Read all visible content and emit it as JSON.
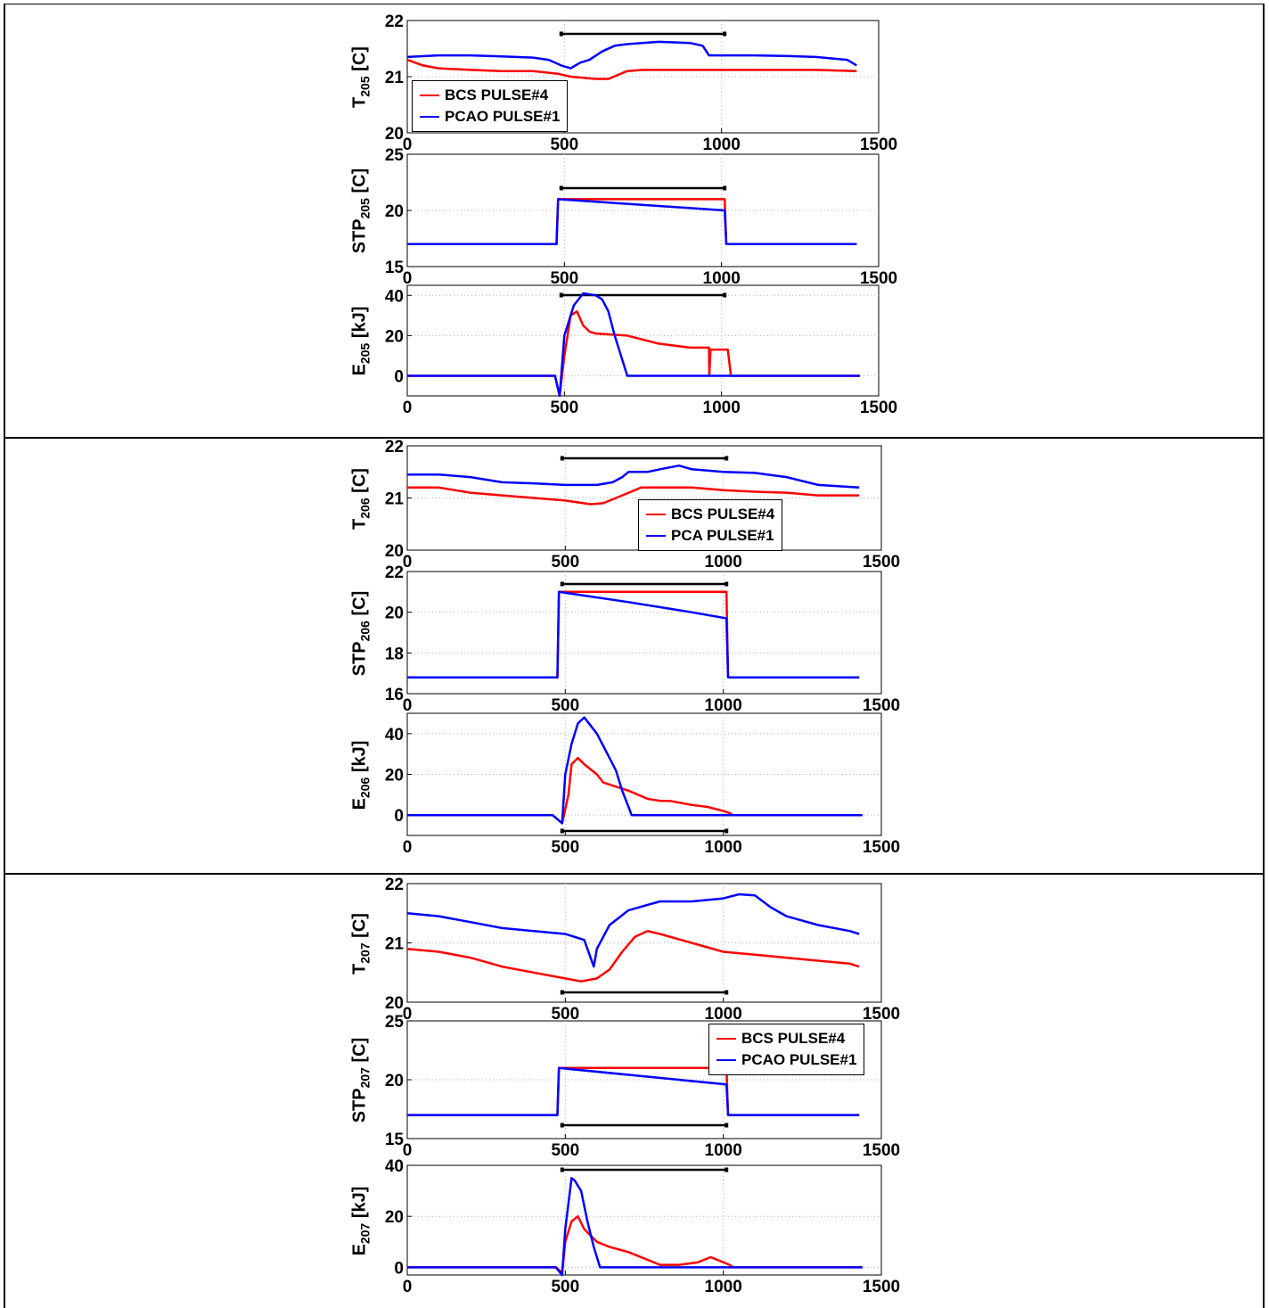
{
  "colors": {
    "bcs": "#ff0000",
    "pca": "#0000ff",
    "bar": "#000000",
    "grid": "#b0b0b0"
  },
  "chart_data": [
    {
      "type": "line",
      "ylabel_main": "T",
      "ylabel_sub": "205",
      "ylabel_unit": " [C]",
      "xlim": [
        0,
        1500
      ],
      "ylim": [
        20,
        22
      ],
      "yticks": [
        "20",
        "21",
        "22"
      ],
      "xticks": [
        "0",
        "500",
        "1000",
        "1500"
      ],
      "bar": [
        490,
        1010
      ],
      "legend": {
        "show": true,
        "items": [
          "BCS PULSE#4",
          "PCAO PULSE#1"
        ]
      },
      "series": [
        {
          "name": "BCS PULSE#4",
          "color": "bcs",
          "x": [
            0,
            50,
            100,
            200,
            300,
            400,
            480,
            520,
            600,
            640,
            700,
            750,
            800,
            900,
            1000,
            1100,
            1200,
            1300,
            1430
          ],
          "y": [
            21.3,
            21.2,
            21.15,
            21.12,
            21.1,
            21.1,
            21.05,
            21.0,
            20.96,
            20.96,
            21.1,
            21.12,
            21.12,
            21.12,
            21.12,
            21.12,
            21.12,
            21.12,
            21.1
          ]
        },
        {
          "name": "PCAO PULSE#1",
          "color": "pca",
          "x": [
            0,
            100,
            200,
            300,
            400,
            450,
            490,
            520,
            550,
            580,
            620,
            660,
            700,
            800,
            900,
            940,
            960,
            1000,
            1100,
            1200,
            1300,
            1400,
            1430
          ],
          "y": [
            21.35,
            21.38,
            21.38,
            21.36,
            21.34,
            21.3,
            21.2,
            21.15,
            21.25,
            21.3,
            21.45,
            21.55,
            21.58,
            21.62,
            21.6,
            21.55,
            21.38,
            21.38,
            21.38,
            21.37,
            21.35,
            21.3,
            21.2
          ]
        }
      ]
    },
    {
      "type": "line",
      "ylabel_main": "STP",
      "ylabel_sub": "205",
      "ylabel_unit": " [C]",
      "xlim": [
        0,
        1500
      ],
      "ylim": [
        15,
        25
      ],
      "yticks": [
        "15",
        "20",
        "25"
      ],
      "xticks": [
        "0",
        "500",
        "1000",
        "1500"
      ],
      "bar": [
        490,
        1010
      ],
      "legend": {
        "show": false,
        "items": []
      },
      "series": [
        {
          "name": "BCS PULSE#4",
          "color": "bcs",
          "x": [
            0,
            475,
            480,
            1010,
            1015,
            1430
          ],
          "y": [
            17,
            17,
            21,
            21,
            17,
            17
          ]
        },
        {
          "name": "PCAO PULSE#1",
          "color": "pca",
          "x": [
            0,
            475,
            480,
            1010,
            1015,
            1430
          ],
          "y": [
            17,
            17,
            21,
            20,
            17,
            17
          ]
        }
      ]
    },
    {
      "type": "line",
      "ylabel_main": "E",
      "ylabel_sub": "205",
      "ylabel_unit": " [kJ]",
      "xlim": [
        0,
        1500
      ],
      "ylim": [
        -10,
        45
      ],
      "yticks": [
        "0",
        "20",
        "40"
      ],
      "xticks": [
        "0",
        "500",
        "1000",
        "1500"
      ],
      "bar": [
        490,
        1010
      ],
      "legend": {
        "show": false,
        "items": []
      },
      "series": [
        {
          "name": "BCS PULSE#4",
          "color": "bcs",
          "x": [
            0,
            470,
            485,
            500,
            520,
            540,
            560,
            580,
            600,
            700,
            800,
            900,
            960,
            961,
            965,
            1000,
            1020,
            1030,
            1440
          ],
          "y": [
            0,
            0,
            -10,
            10,
            30,
            32,
            25,
            22,
            21,
            20,
            16,
            14,
            14,
            0,
            13,
            13,
            13,
            0,
            0
          ]
        },
        {
          "name": "PCAO PULSE#1",
          "color": "pca",
          "x": [
            0,
            470,
            485,
            500,
            530,
            560,
            600,
            620,
            640,
            660,
            700,
            1440
          ],
          "y": [
            0,
            0,
            -10,
            20,
            35,
            41,
            40,
            38,
            32,
            20,
            0,
            0
          ]
        }
      ]
    },
    {
      "type": "line",
      "ylabel_main": "T",
      "ylabel_sub": "206",
      "ylabel_unit": " [C]",
      "xlim": [
        0,
        1500
      ],
      "ylim": [
        20,
        22
      ],
      "yticks": [
        "20",
        "21",
        "22"
      ],
      "xticks": [
        "0",
        "500",
        "1000",
        "1500"
      ],
      "bar": [
        490,
        1010
      ],
      "legend": {
        "show": true,
        "items": [
          "BCS PULSE#4",
          "PCA PULSE#1"
        ]
      },
      "series": [
        {
          "name": "BCS PULSE#4",
          "color": "bcs",
          "x": [
            0,
            100,
            200,
            300,
            400,
            500,
            580,
            620,
            680,
            740,
            800,
            900,
            1000,
            1100,
            1200,
            1300,
            1430
          ],
          "y": [
            21.2,
            21.2,
            21.1,
            21.05,
            21.0,
            20.95,
            20.88,
            20.9,
            21.05,
            21.2,
            21.2,
            21.2,
            21.15,
            21.12,
            21.1,
            21.05,
            21.05
          ]
        },
        {
          "name": "PCA PULSE#1",
          "color": "pca",
          "x": [
            0,
            100,
            200,
            300,
            400,
            500,
            600,
            650,
            680,
            700,
            760,
            800,
            860,
            900,
            1000,
            1100,
            1200,
            1300,
            1430
          ],
          "y": [
            21.45,
            21.45,
            21.4,
            21.3,
            21.28,
            21.25,
            21.25,
            21.3,
            21.4,
            21.5,
            21.5,
            21.55,
            21.62,
            21.55,
            21.5,
            21.48,
            21.4,
            21.25,
            21.2
          ]
        }
      ]
    },
    {
      "type": "line",
      "ylabel_main": "STP",
      "ylabel_sub": "206",
      "ylabel_unit": " [C]",
      "xlim": [
        0,
        1500
      ],
      "ylim": [
        16,
        22
      ],
      "yticks": [
        "16",
        "18",
        "20",
        "22"
      ],
      "xticks": [
        "0",
        "500",
        "1000",
        "1500"
      ],
      "bar": [
        490,
        1010
      ],
      "legend": {
        "show": false,
        "items": []
      },
      "series": [
        {
          "name": "BCS PULSE#4",
          "color": "bcs",
          "x": [
            0,
            475,
            480,
            1010,
            1015,
            1430
          ],
          "y": [
            16.8,
            16.8,
            21,
            21,
            16.8,
            16.8
          ]
        },
        {
          "name": "PCA PULSE#1",
          "color": "pca",
          "x": [
            0,
            475,
            480,
            700,
            900,
            1010,
            1015,
            1430
          ],
          "y": [
            16.8,
            16.8,
            21,
            20.5,
            20.0,
            19.7,
            16.8,
            16.8
          ]
        }
      ]
    },
    {
      "type": "line",
      "ylabel_main": "E",
      "ylabel_sub": "206",
      "ylabel_unit": " [kJ]",
      "xlim": [
        0,
        1500
      ],
      "ylim": [
        -10,
        50
      ],
      "yticks": [
        "0",
        "20",
        "40"
      ],
      "xticks": [
        "0",
        "500",
        "1000",
        "1500"
      ],
      "bar": [
        490,
        1010
      ],
      "legend": {
        "show": false,
        "items": []
      },
      "series": [
        {
          "name": "BCS PULSE#4",
          "color": "bcs",
          "x": [
            0,
            460,
            490,
            510,
            520,
            540,
            560,
            600,
            620,
            640,
            660,
            700,
            760,
            800,
            830,
            900,
            950,
            1000,
            1020,
            1030,
            1440
          ],
          "y": [
            0,
            0,
            -4,
            10,
            25,
            28,
            25,
            20,
            16,
            15,
            14,
            12,
            8,
            7,
            7,
            5,
            4,
            2,
            1,
            0,
            0
          ]
        },
        {
          "name": "PCA PULSE#1",
          "color": "pca",
          "x": [
            0,
            460,
            490,
            500,
            520,
            540,
            560,
            580,
            600,
            620,
            640,
            660,
            680,
            700,
            710,
            1440
          ],
          "y": [
            0,
            0,
            -4,
            20,
            35,
            45,
            48,
            44,
            40,
            34,
            28,
            22,
            12,
            4,
            0,
            0
          ]
        }
      ]
    },
    {
      "type": "line",
      "ylabel_main": "T",
      "ylabel_sub": "207",
      "ylabel_unit": " [C]",
      "xlim": [
        0,
        1500
      ],
      "ylim": [
        20,
        22
      ],
      "yticks": [
        "20",
        "21",
        "22"
      ],
      "xticks": [
        "0",
        "500",
        "1000",
        "1500"
      ],
      "bar": [
        490,
        1010
      ],
      "legend": {
        "show": false,
        "items": []
      },
      "series": [
        {
          "name": "BCS PULSE#4",
          "color": "bcs",
          "x": [
            0,
            100,
            200,
            300,
            400,
            500,
            550,
            600,
            640,
            680,
            720,
            760,
            800,
            900,
            1000,
            1100,
            1200,
            1300,
            1400,
            1430
          ],
          "y": [
            20.9,
            20.85,
            20.75,
            20.6,
            20.5,
            20.4,
            20.35,
            20.4,
            20.55,
            20.85,
            21.1,
            21.2,
            21.15,
            21.0,
            20.85,
            20.8,
            20.75,
            20.7,
            20.65,
            20.6
          ]
        },
        {
          "name": "PCAO PULSE#1",
          "color": "pca",
          "x": [
            0,
            100,
            200,
            300,
            400,
            500,
            560,
            590,
            600,
            640,
            700,
            800,
            900,
            1000,
            1050,
            1100,
            1150,
            1200,
            1300,
            1400,
            1430
          ],
          "y": [
            21.5,
            21.45,
            21.35,
            21.25,
            21.2,
            21.15,
            21.05,
            20.6,
            20.9,
            21.3,
            21.55,
            21.7,
            21.7,
            21.75,
            21.82,
            21.8,
            21.6,
            21.45,
            21.3,
            21.2,
            21.15
          ]
        }
      ]
    },
    {
      "type": "line",
      "ylabel_main": "STP",
      "ylabel_sub": "207",
      "ylabel_unit": " [C]",
      "xlim": [
        0,
        1500
      ],
      "ylim": [
        15,
        25
      ],
      "yticks": [
        "15",
        "20",
        "25"
      ],
      "xticks": [
        "0",
        "500",
        "1000",
        "1500"
      ],
      "bar": [
        490,
        1010
      ],
      "legend": {
        "show": true,
        "items": [
          "BCS PULSE#4",
          "PCAO PULSE#1"
        ]
      },
      "series": [
        {
          "name": "BCS PULSE#4",
          "color": "bcs",
          "x": [
            0,
            475,
            480,
            1010,
            1015,
            1430
          ],
          "y": [
            17,
            17,
            21,
            21,
            17,
            17
          ]
        },
        {
          "name": "PCAO PULSE#1",
          "color": "pca",
          "x": [
            0,
            475,
            480,
            1010,
            1015,
            1430
          ],
          "y": [
            17,
            17,
            21,
            19.6,
            17,
            17
          ]
        }
      ]
    },
    {
      "type": "line",
      "ylabel_main": "E",
      "ylabel_sub": "207",
      "ylabel_unit": " [kJ]",
      "xlim": [
        0,
        1500
      ],
      "ylim": [
        -3,
        40
      ],
      "yticks": [
        "0",
        "20",
        "40"
      ],
      "xticks": [
        "0",
        "500",
        "1000",
        "1500"
      ],
      "bar": [
        490,
        1010
      ],
      "legend": {
        "show": false,
        "items": []
      },
      "series": [
        {
          "name": "BCS PULSE#4",
          "color": "bcs",
          "x": [
            0,
            470,
            490,
            500,
            520,
            540,
            560,
            600,
            640,
            700,
            760,
            800,
            860,
            920,
            960,
            1000,
            1020,
            1030,
            1440
          ],
          "y": [
            0,
            0,
            -2,
            10,
            18,
            20,
            15,
            10,
            8,
            6,
            3,
            1,
            1,
            2,
            4,
            2,
            1,
            0,
            0
          ]
        },
        {
          "name": "PCAO PULSE#1",
          "color": "pca",
          "x": [
            0,
            470,
            490,
            500,
            520,
            530,
            550,
            570,
            590,
            610,
            1440
          ],
          "y": [
            0,
            0,
            -3,
            15,
            35,
            34,
            30,
            18,
            8,
            0,
            0
          ]
        }
      ]
    }
  ]
}
